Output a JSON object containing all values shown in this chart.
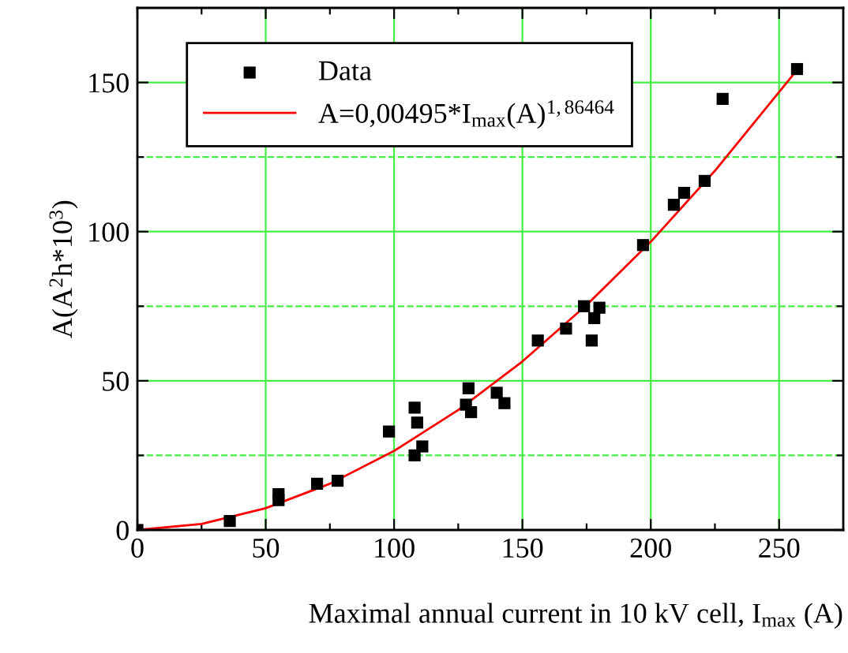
{
  "chart_data": {
    "type": "scatter",
    "xlabel": "Maximal annual current in 10 kV cell, I$_{max}$ (A)",
    "ylabel": "A(A$^{2}$h*10$^{3}$)",
    "series": [
      {
        "name": "Data",
        "color": "#000000",
        "marker": "square",
        "x": [
          0,
          36,
          55,
          55,
          70,
          78,
          98,
          108,
          108,
          109,
          111,
          128,
          129,
          130,
          140,
          143,
          156,
          167,
          174,
          177,
          178,
          180,
          197,
          209,
          213,
          221,
          228,
          257
        ],
        "values": [
          0,
          3,
          12,
          10,
          15.5,
          16.5,
          33,
          41,
          25,
          36,
          28,
          42,
          47.5,
          39.5,
          46,
          42.5,
          63.5,
          67.5,
          75,
          63.5,
          71,
          74.5,
          95.5,
          109,
          113,
          117,
          144.5,
          154.5
        ]
      },
      {
        "name": "A=0,00495*I$_{max}$(A)$^{1,86464}$",
        "type": "line",
        "color": "#ff0000",
        "marker": "none",
        "line_style": "solid",
        "x": [
          0,
          25,
          50,
          75,
          100,
          125,
          150,
          175,
          200,
          225,
          257
        ],
        "values": [
          0,
          2.0,
          7.3,
          15.5,
          26.5,
          40.2,
          56.5,
          75.4,
          96.6,
          120.4,
          154.2
        ]
      }
    ],
    "xlim": [
      0,
      275
    ],
    "ylim": [
      0,
      175
    ],
    "xticks": [
      0,
      {
        "value": 25,
        "label": null
      },
      50,
      {
        "value": 75,
        "label": null
      },
      100,
      {
        "value": 125,
        "label": null
      },
      150,
      {
        "value": 175,
        "label": null
      },
      200,
      {
        "value": 225,
        "label": null
      },
      250
    ],
    "yticks": [
      0,
      {
        "value": 25,
        "label": null
      },
      50,
      {
        "value": 75,
        "label": null
      },
      100,
      {
        "value": 125,
        "label": null
      },
      150
    ],
    "grid": true,
    "legend": "top left"
  }
}
